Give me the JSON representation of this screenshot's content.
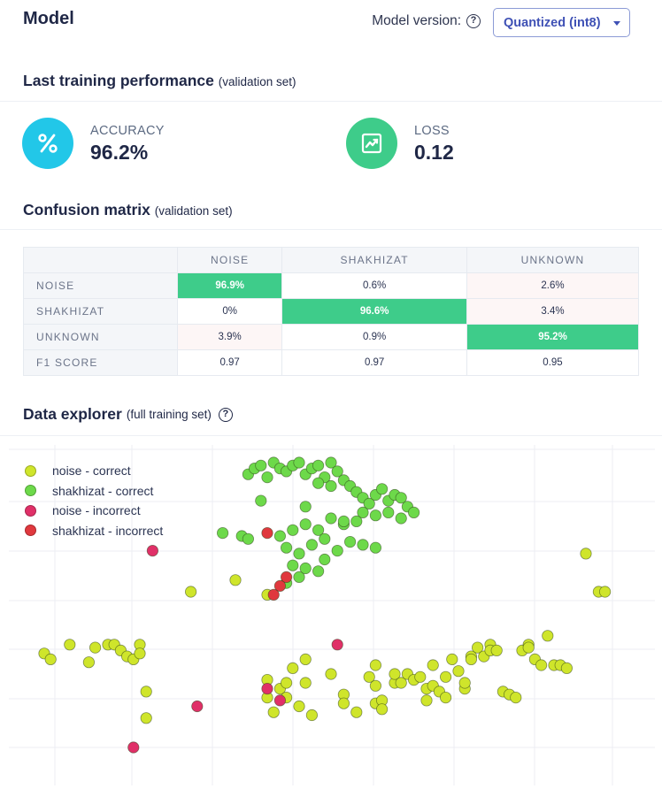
{
  "header": {
    "title": "Model",
    "version_label": "Model version:",
    "version_value": "Quantized (int8)"
  },
  "performance": {
    "title": "Last training performance",
    "subtitle": "(validation set)",
    "accuracy_label": "ACCURACY",
    "accuracy_value": "96.2%",
    "loss_label": "LOSS",
    "loss_value": "0.12",
    "accuracy_color": "#22c7e8",
    "loss_color": "#3ecc8a"
  },
  "confusion": {
    "title": "Confusion matrix",
    "subtitle": "(validation set)",
    "columns": [
      "NOISE",
      "SHAKHIZAT",
      "UNKNOWN"
    ],
    "rows": [
      {
        "label": "NOISE",
        "cells": [
          "96.9%",
          "0.6%",
          "2.6%"
        ]
      },
      {
        "label": "SHAKHIZAT",
        "cells": [
          "0%",
          "96.6%",
          "3.4%"
        ]
      },
      {
        "label": "UNKNOWN",
        "cells": [
          "3.9%",
          "0.9%",
          "95.2%"
        ]
      },
      {
        "label": "F1 SCORE",
        "cells": [
          "0.97",
          "0.97",
          "0.95"
        ]
      }
    ]
  },
  "explorer": {
    "title": "Data explorer",
    "subtitle": "(full training set)",
    "legend": [
      {
        "label": "noise - correct",
        "color": "#cfe52b"
      },
      {
        "label": "shakhizat - correct",
        "color": "#6dd94a"
      },
      {
        "label": "noise - incorrect",
        "color": "#e03068"
      },
      {
        "label": "shakhizat - incorrect",
        "color": "#e0383e"
      }
    ]
  },
  "chart_data": {
    "type": "scatter",
    "title": "Data explorer",
    "xlabel": "",
    "ylabel": "",
    "xlim": [
      0,
      100
    ],
    "ylim": [
      0,
      100
    ],
    "grid": true,
    "legend_position": "top-left",
    "series": [
      {
        "name": "noise - correct",
        "color": "#cfe52b",
        "points": [
          [
            5,
            32
          ],
          [
            6,
            30
          ],
          [
            9,
            35
          ],
          [
            12,
            29
          ],
          [
            13,
            34
          ],
          [
            15,
            35
          ],
          [
            16,
            35
          ],
          [
            17,
            33
          ],
          [
            18,
            31
          ],
          [
            19,
            30
          ],
          [
            20,
            35
          ],
          [
            20,
            32
          ],
          [
            21,
            19
          ],
          [
            21,
            10
          ],
          [
            28,
            53
          ],
          [
            35,
            57
          ],
          [
            40,
            52
          ],
          [
            40,
            23
          ],
          [
            40,
            17
          ],
          [
            41,
            12
          ],
          [
            42,
            20
          ],
          [
            43,
            22
          ],
          [
            43,
            17
          ],
          [
            44,
            27
          ],
          [
            45,
            14
          ],
          [
            46,
            30
          ],
          [
            46,
            22
          ],
          [
            47,
            11
          ],
          [
            50,
            25
          ],
          [
            52,
            18
          ],
          [
            52,
            15
          ],
          [
            54,
            12
          ],
          [
            57,
            21
          ],
          [
            57,
            15
          ],
          [
            57,
            28
          ],
          [
            56,
            24
          ],
          [
            58,
            16
          ],
          [
            58,
            13
          ],
          [
            60,
            22
          ],
          [
            60,
            25
          ],
          [
            61,
            22
          ],
          [
            62,
            25
          ],
          [
            63,
            23
          ],
          [
            64,
            24
          ],
          [
            65,
            20
          ],
          [
            65,
            16
          ],
          [
            66,
            28
          ],
          [
            66,
            21
          ],
          [
            67,
            19
          ],
          [
            68,
            24
          ],
          [
            68,
            17
          ],
          [
            69,
            30
          ],
          [
            70,
            26
          ],
          [
            71,
            20
          ],
          [
            71,
            22
          ],
          [
            72,
            31
          ],
          [
            72,
            30
          ],
          [
            73,
            34
          ],
          [
            74,
            31
          ],
          [
            75,
            35
          ],
          [
            75,
            33
          ],
          [
            76,
            33
          ],
          [
            77,
            19
          ],
          [
            78,
            18
          ],
          [
            79,
            17
          ],
          [
            80,
            33
          ],
          [
            81,
            35
          ],
          [
            81,
            34
          ],
          [
            82,
            30
          ],
          [
            83,
            28
          ],
          [
            84,
            38
          ],
          [
            85,
            28
          ],
          [
            86,
            28
          ],
          [
            87,
            27
          ],
          [
            90,
            66
          ],
          [
            92,
            53
          ],
          [
            93,
            53
          ]
        ]
      },
      {
        "name": "shakhizat - correct",
        "color": "#6dd94a",
        "points": [
          [
            37,
            93
          ],
          [
            38,
            95
          ],
          [
            39,
            96
          ],
          [
            40,
            92
          ],
          [
            41,
            97
          ],
          [
            42,
            95
          ],
          [
            43,
            94
          ],
          [
            44,
            96
          ],
          [
            45,
            97
          ],
          [
            46,
            93
          ],
          [
            47,
            95
          ],
          [
            48,
            96
          ],
          [
            49,
            92
          ],
          [
            50,
            97
          ],
          [
            51,
            94
          ],
          [
            52,
            91
          ],
          [
            53,
            89
          ],
          [
            54,
            87
          ],
          [
            55,
            85
          ],
          [
            56,
            83
          ],
          [
            57,
            86
          ],
          [
            58,
            88
          ],
          [
            59,
            84
          ],
          [
            60,
            86
          ],
          [
            61,
            85
          ],
          [
            62,
            82
          ],
          [
            63,
            80
          ],
          [
            61,
            78
          ],
          [
            59,
            80
          ],
          [
            57,
            79
          ],
          [
            55,
            80
          ],
          [
            54,
            77
          ],
          [
            52,
            76
          ],
          [
            50,
            78
          ],
          [
            48,
            74
          ],
          [
            46,
            76
          ],
          [
            44,
            74
          ],
          [
            42,
            72
          ],
          [
            43,
            68
          ],
          [
            45,
            66
          ],
          [
            47,
            69
          ],
          [
            49,
            71
          ],
          [
            51,
            67
          ],
          [
            53,
            70
          ],
          [
            55,
            69
          ],
          [
            57,
            68
          ],
          [
            44,
            62
          ],
          [
            45,
            58
          ],
          [
            46,
            61
          ],
          [
            48,
            60
          ],
          [
            49,
            64
          ],
          [
            43,
            56
          ],
          [
            33,
            73
          ],
          [
            36,
            72
          ],
          [
            39,
            84
          ],
          [
            37,
            71
          ],
          [
            46,
            82
          ],
          [
            50,
            89
          ],
          [
            48,
            90
          ],
          [
            52,
            77
          ]
        ]
      },
      {
        "name": "noise - incorrect",
        "color": "#e03068",
        "points": [
          [
            22,
            67
          ],
          [
            29,
            14
          ],
          [
            40,
            20
          ],
          [
            42,
            16
          ],
          [
            51,
            35
          ],
          [
            19,
            0
          ]
        ]
      },
      {
        "name": "shakhizat - incorrect",
        "color": "#e0383e",
        "points": [
          [
            40,
            73
          ],
          [
            43,
            58
          ],
          [
            42,
            55
          ],
          [
            41,
            52
          ]
        ]
      }
    ]
  }
}
